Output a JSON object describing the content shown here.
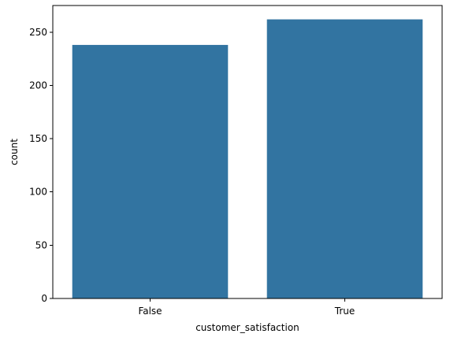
{
  "chart_data": {
    "type": "bar",
    "categories": [
      "False",
      "True"
    ],
    "values": [
      238,
      262
    ],
    "xlabel": "customer_satisfaction",
    "ylabel": "count",
    "ylim": [
      0,
      275
    ],
    "yticks": [
      0,
      50,
      100,
      150,
      200,
      250
    ],
    "grid": false,
    "legend": "none",
    "bar_color": "#3274a1"
  }
}
